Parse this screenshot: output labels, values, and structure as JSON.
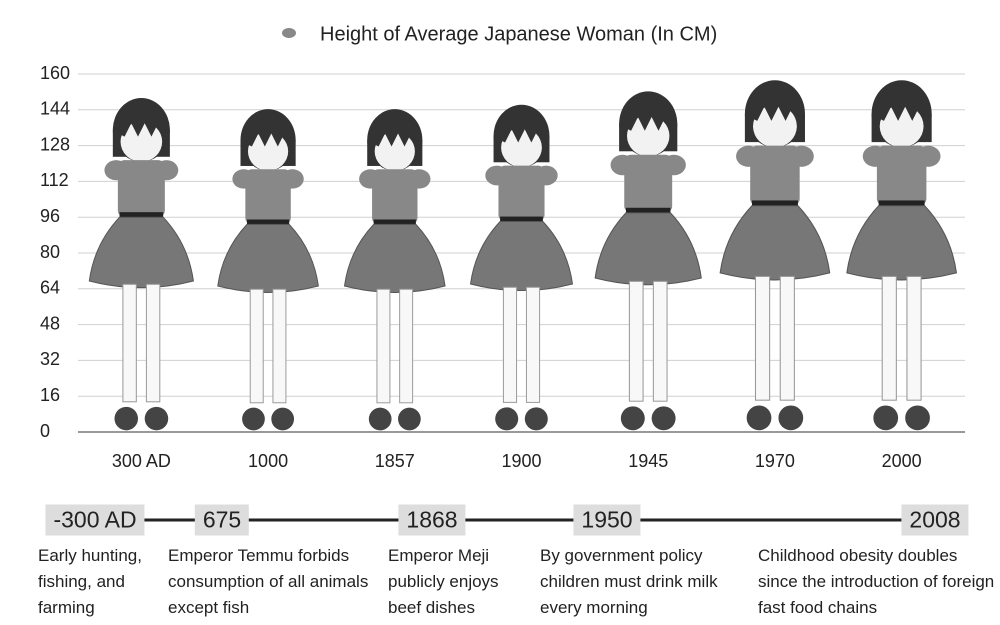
{
  "chart_data": {
    "type": "pictograph",
    "categories": [
      "300 AD",
      "1000",
      "1857",
      "1900",
      "1945",
      "1970",
      "2000"
    ],
    "series": [
      {
        "name": "Height of Average Japanese Woman (In CM)",
        "color": "#888888",
        "values": [
          150,
          145,
          145,
          147,
          153,
          158,
          158
        ]
      }
    ],
    "ylim": [
      0,
      160
    ],
    "yticks": [
      0,
      16,
      32,
      48,
      64,
      80,
      96,
      112,
      128,
      144,
      160
    ],
    "grid": true
  },
  "timeline": {
    "events": [
      {
        "label": "-300 AD",
        "description": "Early hunting, fishing, and farming"
      },
      {
        "label": "675",
        "description": "Emperor Temmu forbids consumption of all animals except fish"
      },
      {
        "label": "1868",
        "description": "Emperor Meji publicly enjoys beef dishes"
      },
      {
        "label": "1950",
        "description": "By government policy children must drink milk every morning"
      },
      {
        "label": "2008",
        "description": "Childhood obesity doubles since the introduction of foreign fast food chains"
      }
    ]
  }
}
